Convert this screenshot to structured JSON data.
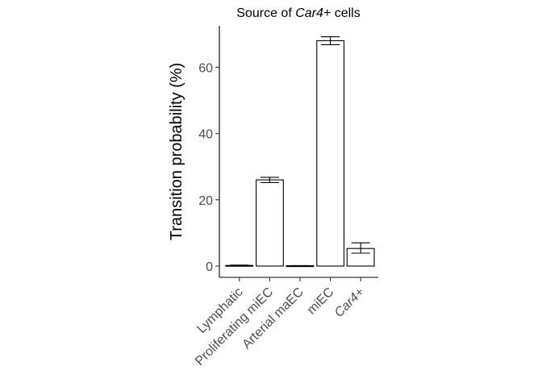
{
  "chart_data": {
    "type": "bar",
    "title_prefix": "Source of ",
    "title_italic": "Car4+",
    "title_suffix": " cells",
    "xlabel": "",
    "ylabel": "Transition probability (%)",
    "ylim": [
      -3.4,
      72.5
    ],
    "yticks": [
      0,
      20,
      40,
      60
    ],
    "grid": false,
    "categories": [
      "Lymphatic",
      "Proliferating miEC",
      "Arterial maEC",
      "miEC",
      "Car4+"
    ],
    "italic_categories": [
      "Car4+"
    ],
    "values": [
      0.2,
      26.0,
      0.1,
      68.0,
      5.3
    ],
    "errors": [
      [
        0.1,
        0.3
      ],
      [
        25.2,
        26.8
      ],
      [
        0.05,
        0.15
      ],
      [
        66.8,
        69.2
      ],
      [
        3.9,
        7.0
      ]
    ]
  }
}
